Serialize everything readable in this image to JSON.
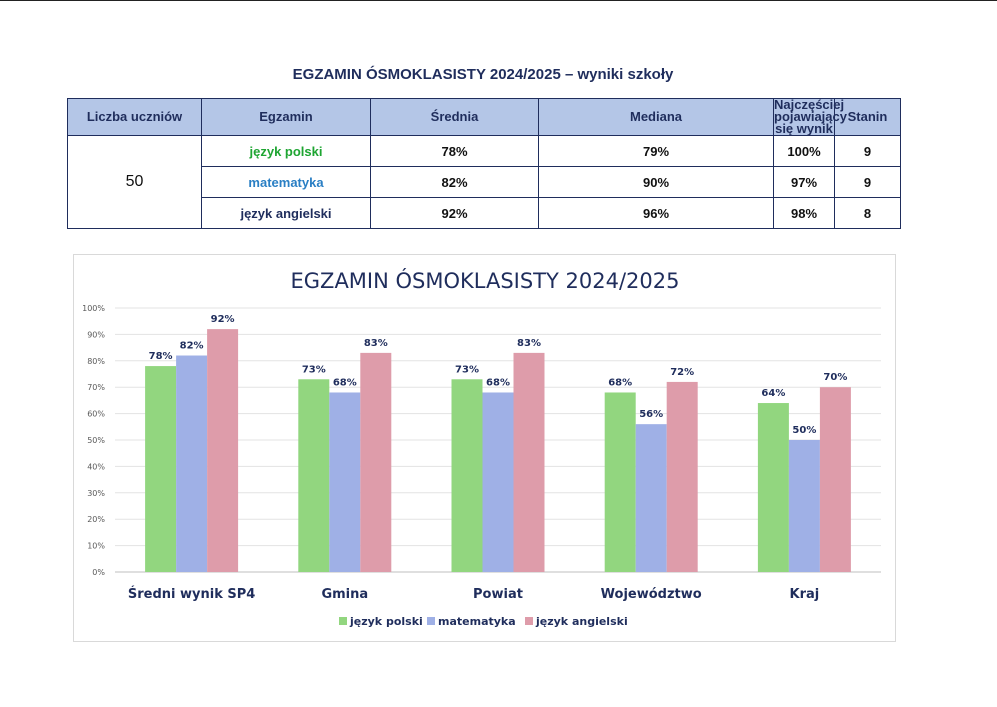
{
  "table": {
    "title": "EGZAMIN ÓSMOKLASISTY 2024/2025 – wyniki szkoły",
    "headers": [
      "Liczba uczniów",
      "Egzamin",
      "Średnia",
      "Mediana",
      "Najczęściej pojawiający się wynik",
      "Stanin"
    ],
    "student_count": "50",
    "rows": [
      {
        "exam": "język polski",
        "color": "#1ea532",
        "mean": "78%",
        "median": "79%",
        "mode": "100%",
        "stanine": "9"
      },
      {
        "exam": "matematyka",
        "color": "#2a7fc4",
        "mean": "82%",
        "median": "90%",
        "mode": "97%",
        "stanine": "9"
      },
      {
        "exam": "język angielski",
        "color": "#1f2d5c",
        "mean": "92%",
        "median": "96%",
        "mode": "98%",
        "stanine": "8"
      }
    ]
  },
  "chart_data": {
    "type": "bar",
    "title": "EGZAMIN ÓSMOKLASISTY 2024/2025",
    "categories": [
      "Średni wynik SP4",
      "Gmina",
      "Powiat",
      "Województwo",
      "Kraj"
    ],
    "series": [
      {
        "name": "język polski",
        "color": "#92d67f",
        "values": [
          78,
          73,
          73,
          68,
          64
        ]
      },
      {
        "name": "matematyka",
        "color": "#9fb0e6",
        "values": [
          82,
          68,
          68,
          56,
          50
        ]
      },
      {
        "name": "język angielski",
        "color": "#de9caa",
        "values": [
          92,
          83,
          83,
          72,
          70
        ]
      }
    ],
    "ylim": [
      0,
      100
    ],
    "yticks": [
      "0%",
      "10%",
      "20%",
      "30%",
      "40%",
      "50%",
      "60%",
      "70%",
      "80%",
      "90%",
      "100%"
    ],
    "value_suffix": "%",
    "grid": true,
    "legend_position": "bottom"
  }
}
